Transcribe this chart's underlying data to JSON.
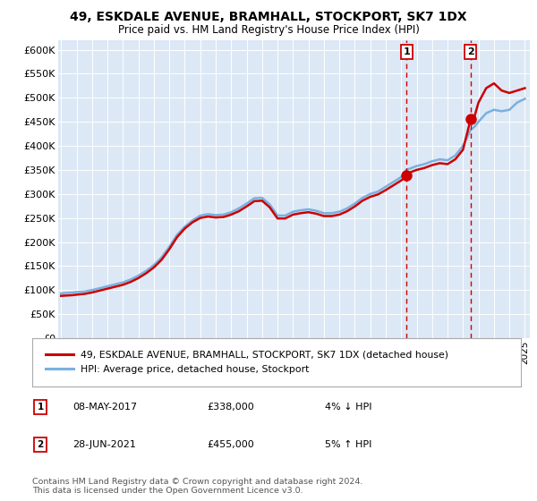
{
  "title": "49, ESKDALE AVENUE, BRAMHALL, STOCKPORT, SK7 1DX",
  "subtitle": "Price paid vs. HM Land Registry's House Price Index (HPI)",
  "ylim": [
    0,
    620000
  ],
  "yticks": [
    0,
    50000,
    100000,
    150000,
    200000,
    250000,
    300000,
    350000,
    400000,
    450000,
    500000,
    550000,
    600000
  ],
  "ytick_labels": [
    "£0",
    "£50K",
    "£100K",
    "£150K",
    "£200K",
    "£250K",
    "£300K",
    "£350K",
    "£400K",
    "£450K",
    "£500K",
    "£550K",
    "£600K"
  ],
  "xlim_start": 1994.8,
  "xlim_end": 2025.3,
  "plot_bg": "#dce8f5",
  "hpi_color": "#7ab0e0",
  "price_color": "#cc0000",
  "marker1_x": 2017.35,
  "marker1_y": 338000,
  "marker2_x": 2021.49,
  "marker2_y": 455000,
  "legend_label1": "49, ESKDALE AVENUE, BRAMHALL, STOCKPORT, SK7 1DX (detached house)",
  "legend_label2": "HPI: Average price, detached house, Stockport",
  "sale1_date": "08-MAY-2017",
  "sale1_price": "£338,000",
  "sale1_hpi": "4% ↓ HPI",
  "sale2_date": "28-JUN-2021",
  "sale2_price": "£455,000",
  "sale2_hpi": "5% ↑ HPI",
  "footer": "Contains HM Land Registry data © Crown copyright and database right 2024.\nThis data is licensed under the Open Government Licence v3.0.",
  "hpi_data": [
    [
      1995.0,
      93000
    ],
    [
      1995.25,
      94000
    ],
    [
      1995.5,
      94500
    ],
    [
      1995.75,
      95000
    ],
    [
      1996.0,
      96000
    ],
    [
      1996.5,
      97000
    ],
    [
      1997.0,
      100000
    ],
    [
      1997.5,
      104000
    ],
    [
      1998.0,
      108000
    ],
    [
      1998.5,
      112000
    ],
    [
      1999.0,
      116000
    ],
    [
      1999.5,
      122000
    ],
    [
      2000.0,
      130000
    ],
    [
      2000.5,
      140000
    ],
    [
      2001.0,
      152000
    ],
    [
      2001.5,
      168000
    ],
    [
      2002.0,
      190000
    ],
    [
      2002.5,
      215000
    ],
    [
      2003.0,
      232000
    ],
    [
      2003.5,
      245000
    ],
    [
      2004.0,
      255000
    ],
    [
      2004.5,
      258000
    ],
    [
      2005.0,
      256000
    ],
    [
      2005.5,
      257000
    ],
    [
      2006.0,
      262000
    ],
    [
      2006.5,
      270000
    ],
    [
      2007.0,
      280000
    ],
    [
      2007.5,
      291000
    ],
    [
      2008.0,
      292000
    ],
    [
      2008.5,
      278000
    ],
    [
      2009.0,
      255000
    ],
    [
      2009.5,
      255000
    ],
    [
      2010.0,
      263000
    ],
    [
      2010.5,
      266000
    ],
    [
      2011.0,
      268000
    ],
    [
      2011.5,
      265000
    ],
    [
      2012.0,
      260000
    ],
    [
      2012.5,
      260000
    ],
    [
      2013.0,
      263000
    ],
    [
      2013.5,
      270000
    ],
    [
      2014.0,
      280000
    ],
    [
      2014.5,
      292000
    ],
    [
      2015.0,
      300000
    ],
    [
      2015.5,
      305000
    ],
    [
      2016.0,
      315000
    ],
    [
      2016.5,
      325000
    ],
    [
      2017.0,
      335000
    ],
    [
      2017.35,
      351000
    ],
    [
      2017.5,
      352000
    ],
    [
      2018.0,
      358000
    ],
    [
      2018.5,
      362000
    ],
    [
      2019.0,
      368000
    ],
    [
      2019.5,
      372000
    ],
    [
      2020.0,
      370000
    ],
    [
      2020.5,
      380000
    ],
    [
      2021.0,
      400000
    ],
    [
      2021.49,
      433000
    ],
    [
      2021.75,
      440000
    ],
    [
      2022.0,
      450000
    ],
    [
      2022.5,
      468000
    ],
    [
      2023.0,
      475000
    ],
    [
      2023.5,
      472000
    ],
    [
      2024.0,
      475000
    ],
    [
      2024.5,
      490000
    ],
    [
      2025.0,
      498000
    ]
  ],
  "price_data": [
    [
      1995.0,
      88000
    ],
    [
      1995.25,
      88500
    ],
    [
      1995.5,
      89000
    ],
    [
      1995.75,
      89500
    ],
    [
      1996.0,
      90500
    ],
    [
      1996.5,
      92000
    ],
    [
      1997.0,
      95000
    ],
    [
      1997.5,
      99000
    ],
    [
      1998.0,
      103000
    ],
    [
      1998.5,
      107000
    ],
    [
      1999.0,
      111000
    ],
    [
      1999.5,
      117000
    ],
    [
      2000.0,
      125000
    ],
    [
      2000.5,
      135000
    ],
    [
      2001.0,
      147000
    ],
    [
      2001.5,
      163000
    ],
    [
      2002.0,
      185000
    ],
    [
      2002.5,
      210000
    ],
    [
      2003.0,
      228000
    ],
    [
      2003.5,
      241000
    ],
    [
      2004.0,
      250000
    ],
    [
      2004.5,
      253000
    ],
    [
      2005.0,
      251000
    ],
    [
      2005.5,
      252000
    ],
    [
      2006.0,
      257000
    ],
    [
      2006.5,
      264000
    ],
    [
      2007.0,
      274000
    ],
    [
      2007.5,
      285000
    ],
    [
      2008.0,
      286000
    ],
    [
      2008.5,
      272000
    ],
    [
      2009.0,
      249000
    ],
    [
      2009.5,
      249000
    ],
    [
      2010.0,
      257000
    ],
    [
      2010.5,
      260000
    ],
    [
      2011.0,
      262000
    ],
    [
      2011.5,
      259000
    ],
    [
      2012.0,
      254000
    ],
    [
      2012.5,
      254000
    ],
    [
      2013.0,
      257000
    ],
    [
      2013.5,
      264000
    ],
    [
      2014.0,
      274000
    ],
    [
      2014.5,
      286000
    ],
    [
      2015.0,
      294000
    ],
    [
      2015.5,
      299000
    ],
    [
      2016.0,
      308000
    ],
    [
      2016.5,
      318000
    ],
    [
      2017.0,
      328000
    ],
    [
      2017.35,
      338000
    ],
    [
      2017.5,
      344000
    ],
    [
      2018.0,
      350000
    ],
    [
      2018.5,
      354000
    ],
    [
      2019.0,
      360000
    ],
    [
      2019.5,
      364000
    ],
    [
      2020.0,
      362000
    ],
    [
      2020.5,
      372000
    ],
    [
      2021.0,
      392000
    ],
    [
      2021.49,
      455000
    ],
    [
      2021.75,
      462000
    ],
    [
      2022.0,
      490000
    ],
    [
      2022.5,
      520000
    ],
    [
      2023.0,
      530000
    ],
    [
      2023.5,
      515000
    ],
    [
      2024.0,
      510000
    ],
    [
      2024.5,
      515000
    ],
    [
      2025.0,
      520000
    ]
  ]
}
